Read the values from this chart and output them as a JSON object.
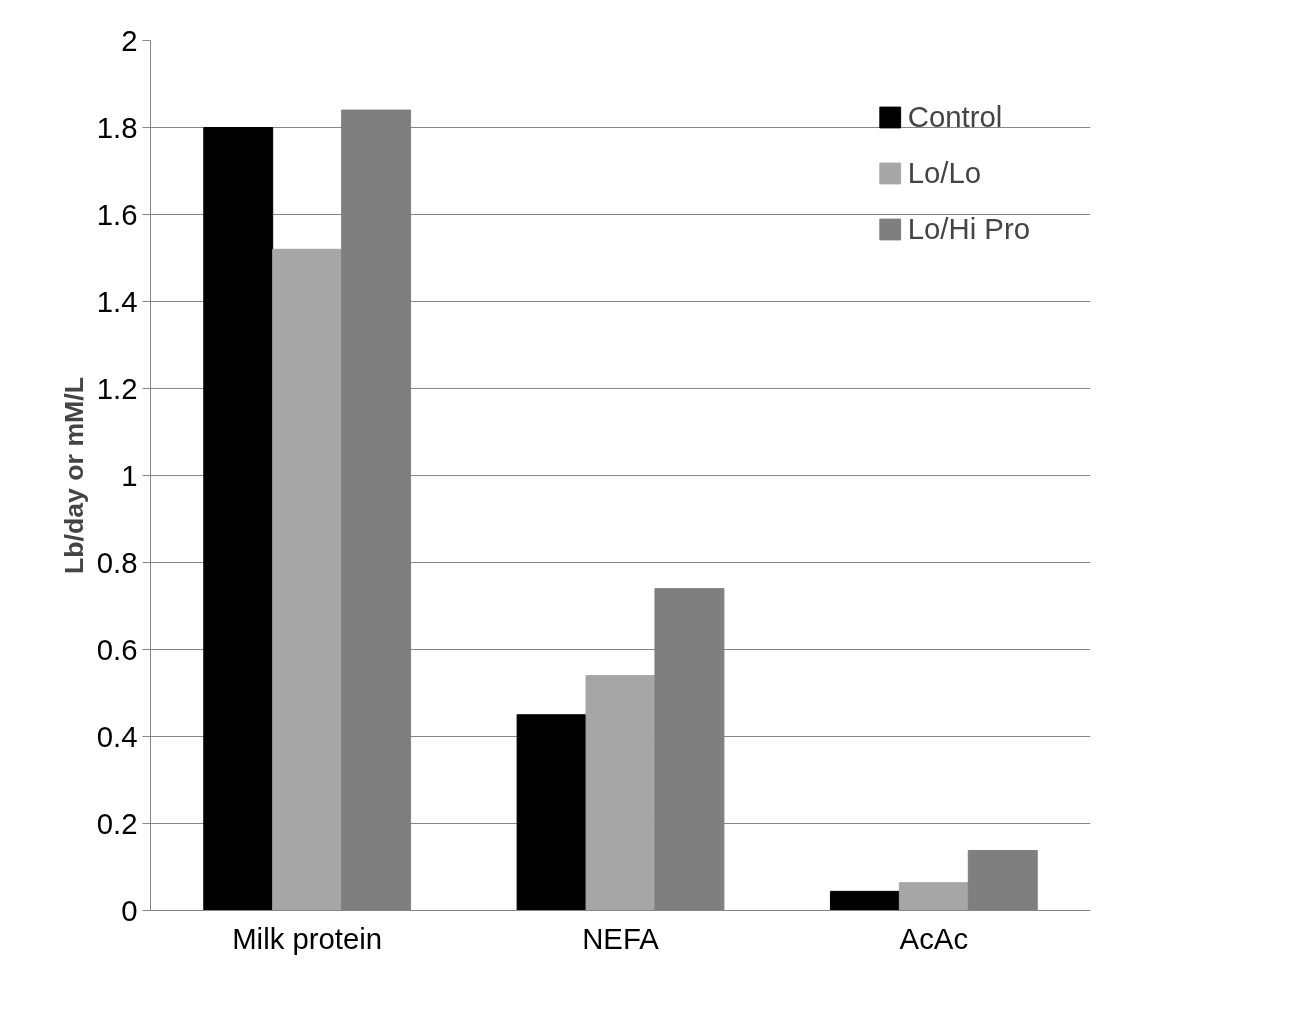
{
  "chart_data": {
    "type": "bar",
    "ylabel": "Lb/day or mM/L",
    "categories": [
      "Milk protein",
      "NEFA",
      "AcAc"
    ],
    "series": [
      {
        "name": "Control",
        "color": "#000000",
        "values": [
          1.8,
          0.45,
          0.044
        ]
      },
      {
        "name": "Lo/Lo",
        "color": "#a6a6a6",
        "values": [
          1.52,
          0.54,
          0.064
        ]
      },
      {
        "name": "Lo/Hi Pro",
        "color": "#7f7f7f",
        "values": [
          1.84,
          0.74,
          0.138
        ]
      }
    ],
    "ylim": [
      0,
      2
    ],
    "yticks": [
      0,
      0.2,
      0.4,
      0.6,
      0.8,
      1,
      1.2,
      1.4,
      1.6,
      1.8,
      2
    ],
    "grid": "y",
    "legend": "top right"
  }
}
